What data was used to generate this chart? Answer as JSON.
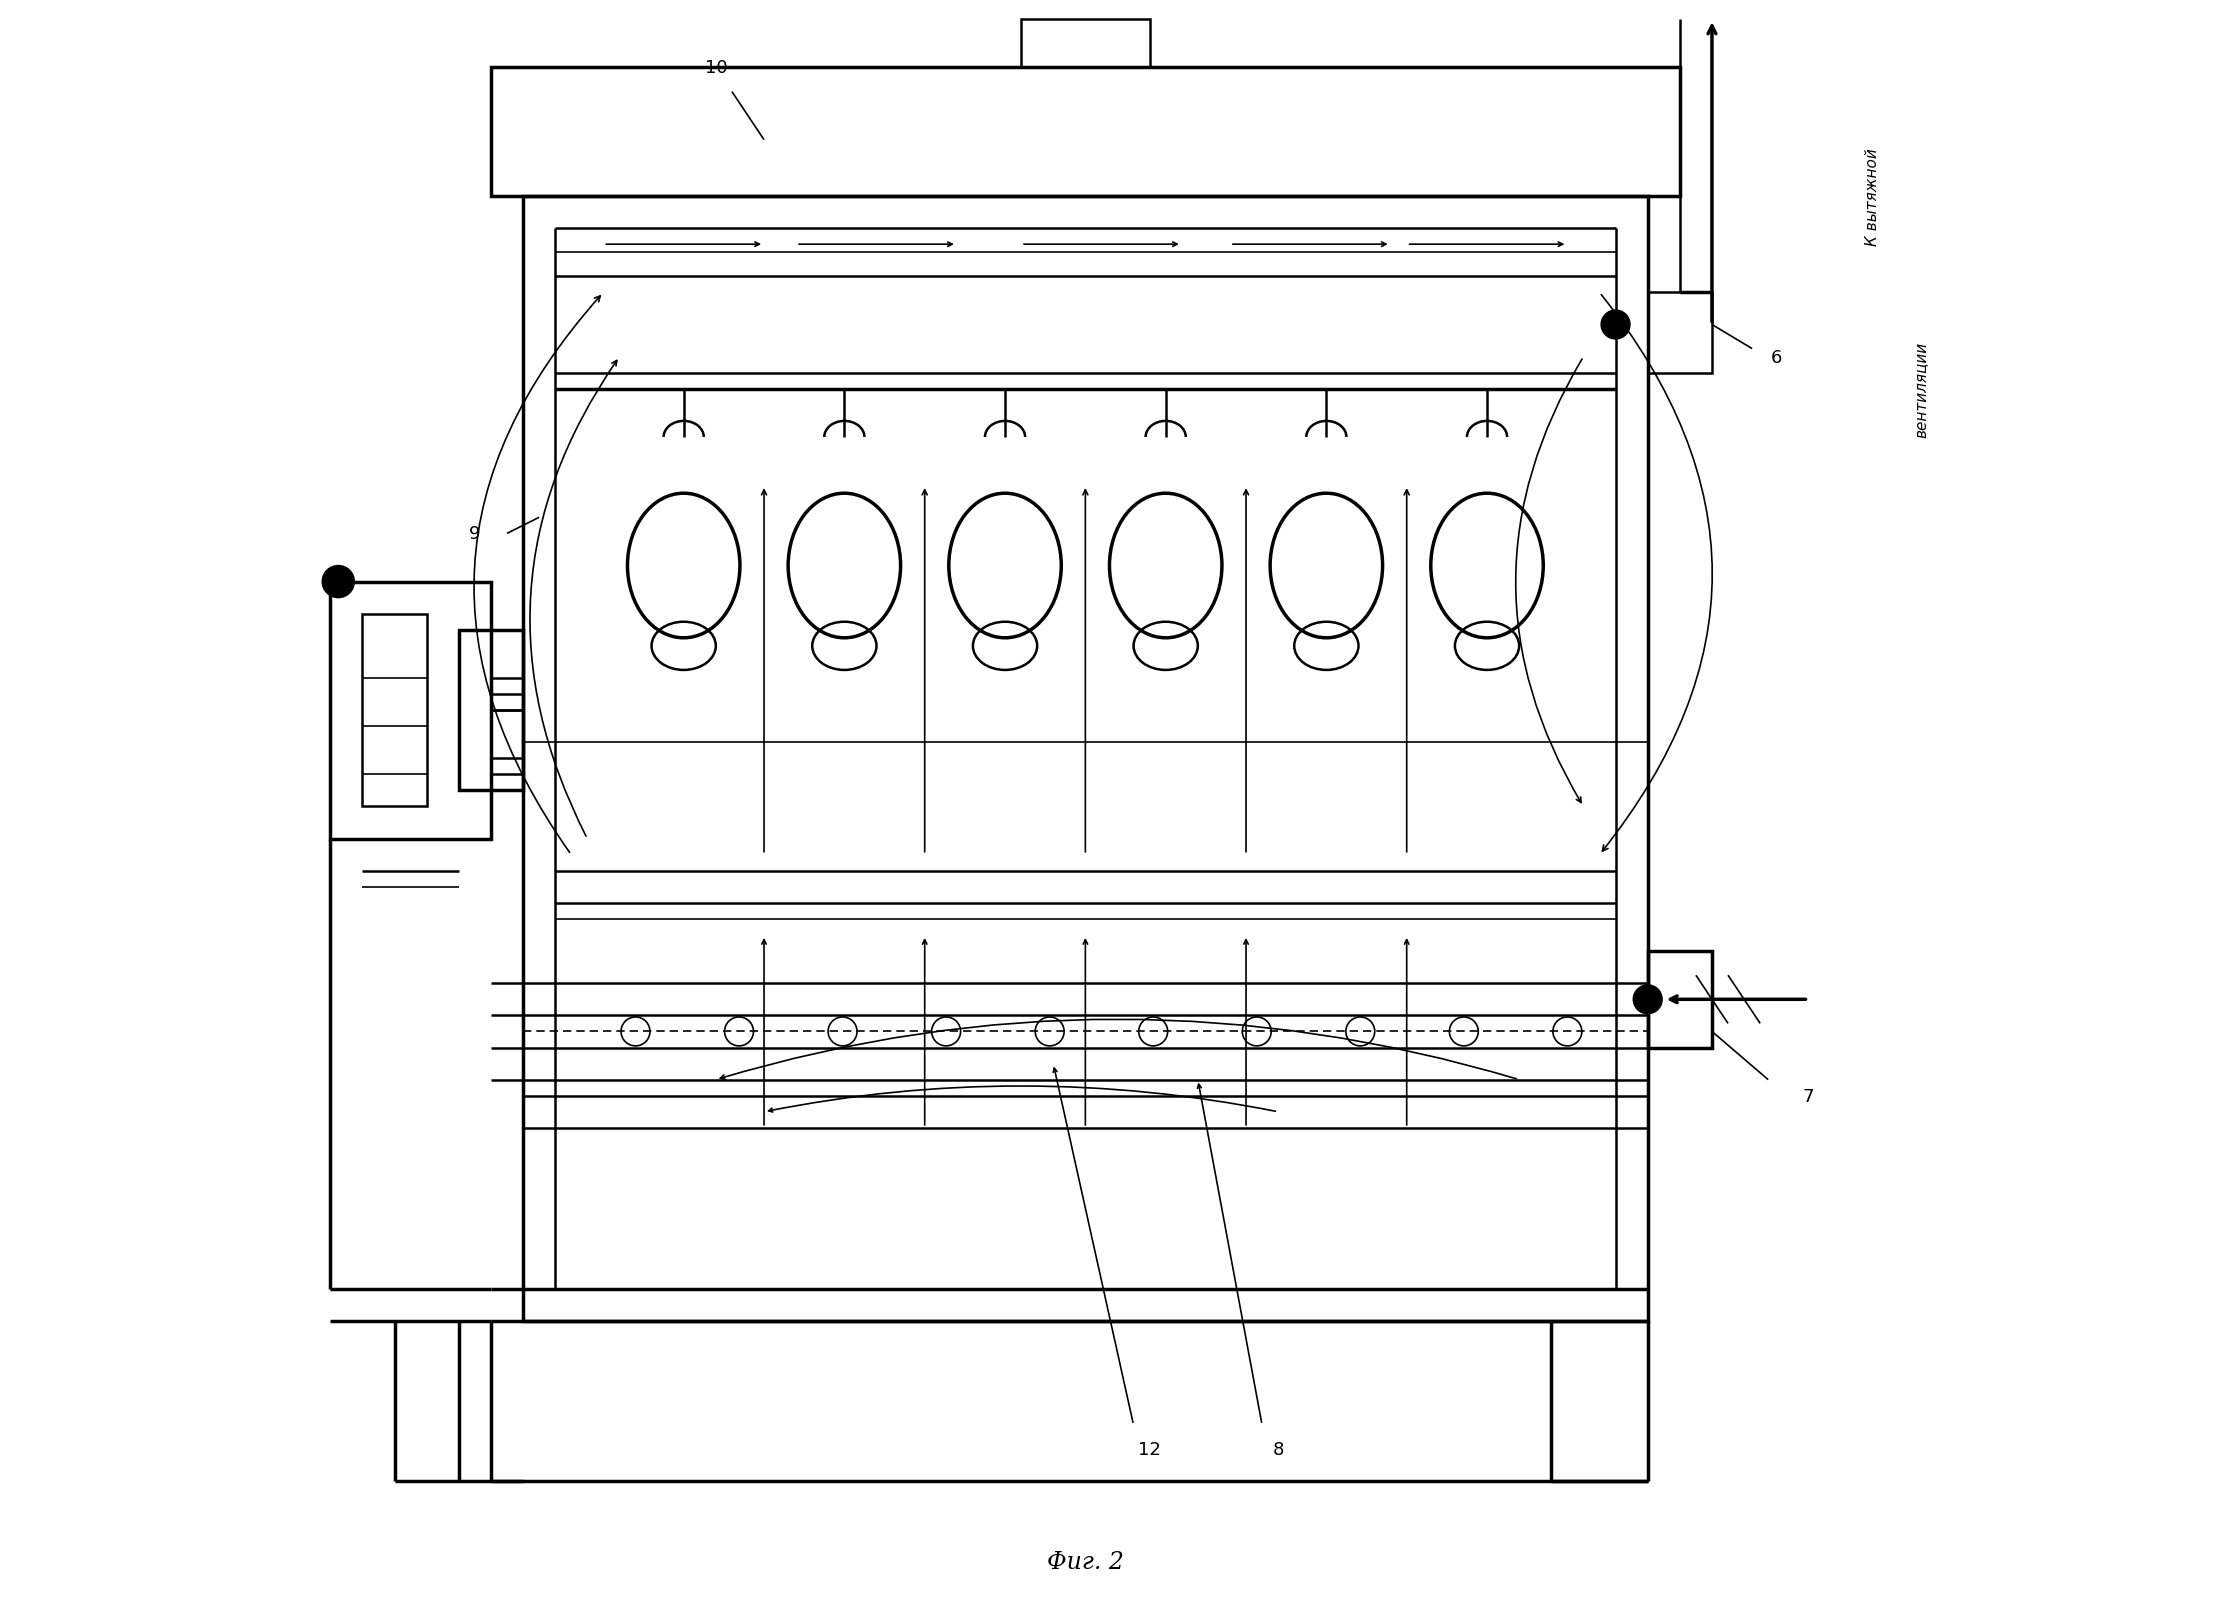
{
  "bg": "#ffffff",
  "lc": "#000000",
  "fig_w": 22.35,
  "fig_h": 16.15,
  "caption": "Фиг. 2",
  "vent1": "К вытяжной",
  "vent2": "вентиляции",
  "lbl_10": "10",
  "lbl_9": "9",
  "lbl_6": "6",
  "lbl_7": "7",
  "lbl_8": "8",
  "lbl_12": "12"
}
